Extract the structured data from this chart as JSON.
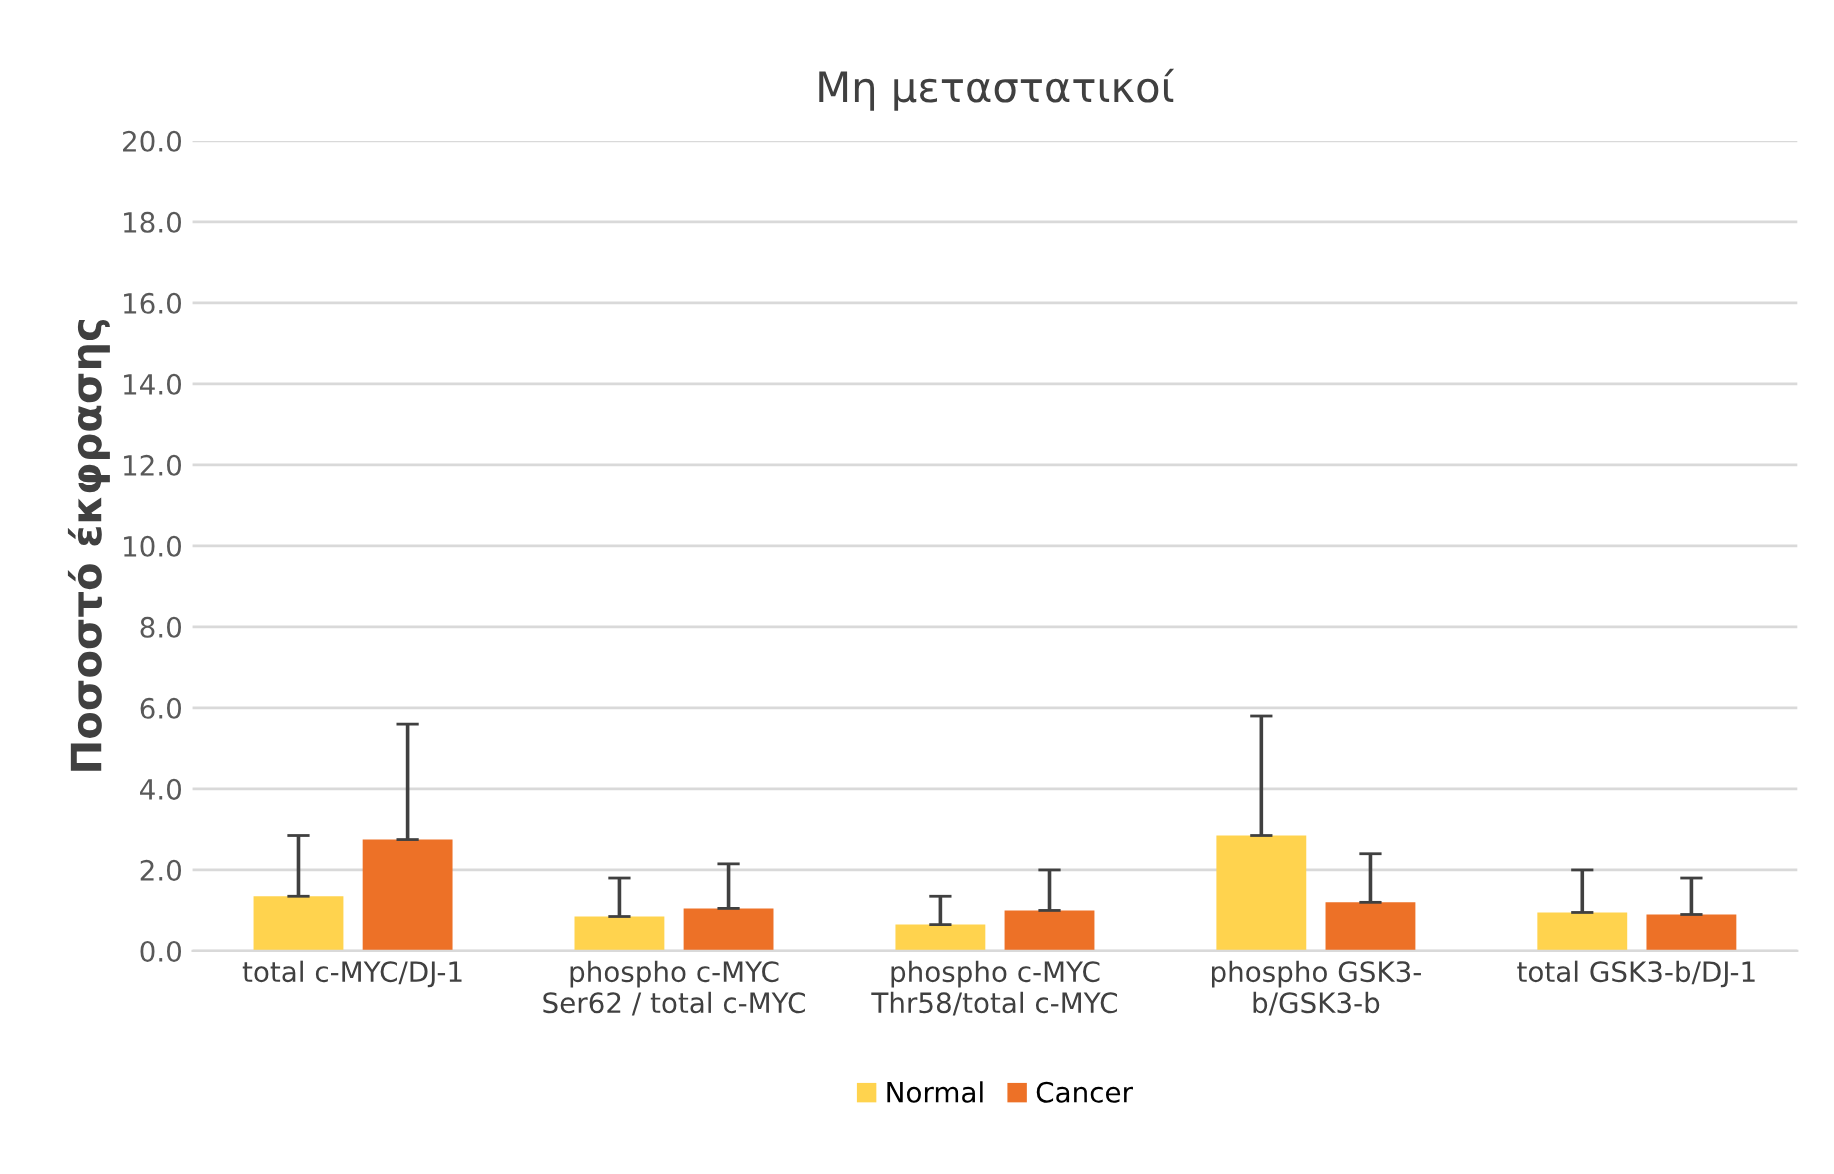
{
  "chart_data": {
    "type": "bar",
    "title": "Μη μεταστατικοί",
    "ylabel": "Ποσοστό έκφρασης",
    "categories": [
      "total c-MYC/DJ-1",
      "phospho c-MYC\nSer62 / total c-MYC",
      "phospho c-MYC\nThr58/total c-MYC",
      "phospho GSK3-\nb/GSK3-b",
      "total GSK3-b/DJ-1"
    ],
    "series": [
      {
        "name": "Normal",
        "color": "#ffd34e",
        "values": [
          1.35,
          0.85,
          0.65,
          2.85,
          0.95
        ],
        "errors": [
          [
            1.35,
            2.85
          ],
          [
            0.85,
            1.8
          ],
          [
            0.65,
            1.35
          ],
          [
            2.85,
            5.8
          ],
          [
            0.95,
            2.0
          ]
        ]
      },
      {
        "name": "Cancer",
        "color": "#ed7127",
        "values": [
          2.75,
          1.05,
          1.0,
          1.2,
          0.9
        ],
        "errors": [
          [
            2.75,
            5.6
          ],
          [
            1.05,
            2.15
          ],
          [
            1.0,
            2.0
          ],
          [
            1.2,
            2.4
          ],
          [
            0.9,
            1.8
          ]
        ]
      }
    ],
    "ylim": [
      0,
      20
    ],
    "yticks": [
      {
        "value": 0,
        "label": "0.0"
      },
      {
        "value": 2,
        "label": "2.0"
      },
      {
        "value": 4,
        "label": "4.0"
      },
      {
        "value": 6,
        "label": "6.0"
      },
      {
        "value": 8,
        "label": "8.0"
      },
      {
        "value": 10,
        "label": "10.0"
      },
      {
        "value": 12,
        "label": "12.0"
      },
      {
        "value": 14,
        "label": "14.0"
      },
      {
        "value": 16,
        "label": "16.0"
      },
      {
        "value": 18,
        "label": "18.0"
      },
      {
        "value": 20,
        "label": "20.0"
      }
    ],
    "grid": "y",
    "legend": "bottom"
  }
}
